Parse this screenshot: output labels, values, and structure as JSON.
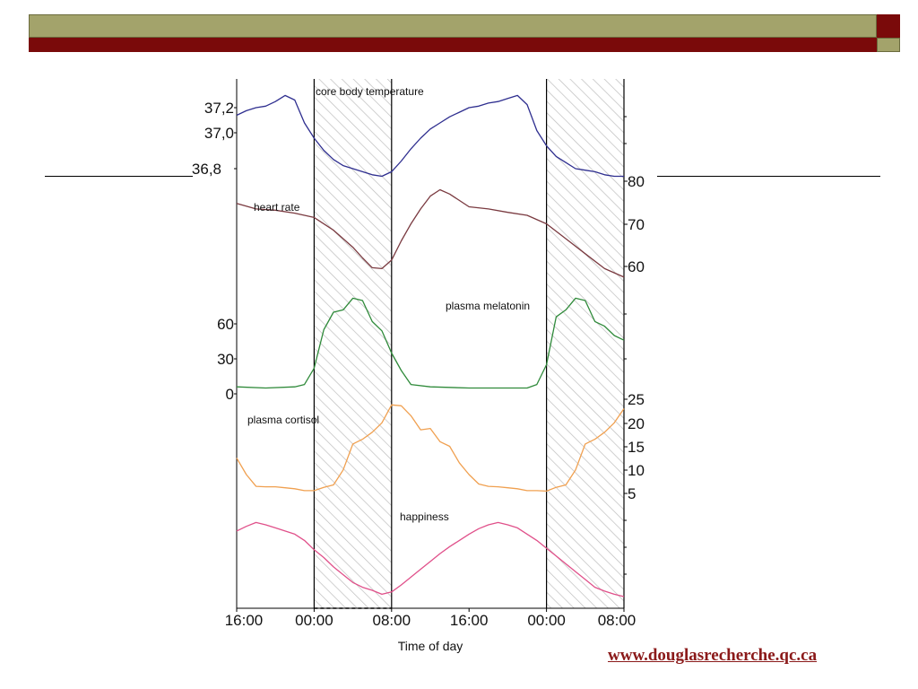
{
  "colors": {
    "banner_olive": "#a3a36b",
    "banner_red": "#7a0a0a",
    "link": "#8b1a1a"
  },
  "source_url": "www.douglasrecherche.qc.ca",
  "chart_data": {
    "type": "line",
    "xlabel": "Time of day",
    "x_ticks": [
      "16:00",
      "00:00",
      "08:00",
      "16:00",
      "00:00",
      "08:00"
    ],
    "x_range_hours": [
      0,
      40
    ],
    "night_shading": [
      [
        8,
        16
      ],
      [
        32,
        40
      ]
    ],
    "series": [
      {
        "name": "core body temperature",
        "color": "#2e2e8f",
        "axis": "left",
        "unit_ticks": [
          "37,2",
          "37,0",
          "36,8"
        ],
        "x": [
          0,
          1,
          2,
          3,
          4,
          5,
          6,
          7,
          8,
          9,
          10,
          11,
          12,
          13,
          14,
          15,
          16,
          17,
          18,
          19,
          20,
          21,
          22,
          23,
          24,
          25,
          26,
          27,
          28,
          29,
          30,
          31,
          32,
          33,
          34,
          35,
          36,
          37,
          38,
          39,
          40
        ],
        "values": [
          37.15,
          37.18,
          37.2,
          37.21,
          37.24,
          37.28,
          37.25,
          37.1,
          37.0,
          36.92,
          36.86,
          36.82,
          36.8,
          36.78,
          36.76,
          36.75,
          36.78,
          36.85,
          36.93,
          37.0,
          37.06,
          37.1,
          37.14,
          37.17,
          37.2,
          37.21,
          37.23,
          37.24,
          37.26,
          37.28,
          37.22,
          37.05,
          36.95,
          36.88,
          36.84,
          36.8,
          36.79,
          36.78,
          36.76,
          36.75,
          36.75
        ]
      },
      {
        "name": "heart rate",
        "color": "#7a3a40",
        "axis": "right",
        "unit_ticks": [
          "80",
          "70",
          "60"
        ],
        "x": [
          0,
          2,
          4,
          6,
          8,
          10,
          12,
          13,
          14,
          15,
          16,
          17,
          18,
          19,
          20,
          21,
          22,
          24,
          26,
          28,
          30,
          32,
          34,
          36,
          38,
          40
        ],
        "values": [
          74.8,
          73.5,
          73.2,
          72.5,
          71.5,
          68.5,
          64.5,
          62.0,
          59.7,
          59.5,
          61.5,
          66.0,
          70.0,
          73.5,
          76.5,
          78.0,
          77.0,
          74.0,
          73.5,
          72.7,
          72.0,
          70.0,
          66.5,
          63.0,
          59.5,
          57.5
        ]
      },
      {
        "name": "plasma melatonin",
        "color": "#2f8a3a",
        "axis": "left",
        "unit_ticks": [
          "60",
          "30",
          "0"
        ],
        "x": [
          0,
          3,
          6,
          7,
          8,
          9,
          10,
          11,
          12,
          13,
          14,
          15,
          16,
          17,
          18,
          20,
          24,
          30,
          31,
          32,
          33,
          34,
          35,
          36,
          37,
          38,
          39,
          40
        ],
        "values": [
          6,
          5,
          6,
          8,
          22,
          55,
          70,
          72,
          82,
          80,
          62,
          54,
          35,
          20,
          8,
          6,
          5,
          5,
          8,
          25,
          66,
          72,
          82,
          80,
          62,
          58,
          50,
          46
        ]
      },
      {
        "name": "plasma cortisol",
        "color": "#f0a050",
        "axis": "right",
        "unit_ticks": [
          "25",
          "20",
          "15",
          "10",
          "5"
        ],
        "x": [
          0,
          1,
          2,
          3,
          4,
          5,
          6,
          7,
          8,
          9,
          10,
          11,
          12,
          13,
          14,
          15,
          16,
          17,
          18,
          19,
          20,
          21,
          22,
          23,
          24,
          25,
          26,
          27,
          28,
          29,
          30,
          31,
          32,
          33,
          34,
          35,
          36,
          37,
          38,
          39,
          40
        ],
        "values": [
          12.5,
          9.0,
          6.5,
          6.4,
          6.4,
          6.2,
          6.0,
          5.6,
          5.6,
          6.3,
          6.8,
          10.0,
          15.5,
          16.5,
          18.0,
          20.0,
          23.8,
          23.6,
          21.5,
          18.5,
          18.8,
          16.0,
          15.0,
          11.5,
          9.0,
          7.0,
          6.5,
          6.4,
          6.2,
          6.0,
          5.6,
          5.6,
          5.5,
          6.3,
          6.8,
          10.0,
          15.5,
          16.5,
          18.0,
          20.0,
          23.0
        ]
      },
      {
        "name": "happiness",
        "color": "#e0508a",
        "axis": "none",
        "x": [
          0,
          1,
          2,
          3,
          4,
          5,
          6,
          7,
          8,
          9,
          10,
          11,
          12,
          13,
          14,
          15,
          16,
          17,
          18,
          19,
          20,
          21,
          22,
          23,
          24,
          25,
          26,
          27,
          28,
          29,
          30,
          31,
          32,
          33,
          34,
          35,
          36,
          37,
          38,
          39,
          40
        ],
        "values": [
          0.84,
          0.9,
          0.95,
          0.92,
          0.88,
          0.84,
          0.8,
          0.72,
          0.6,
          0.5,
          0.38,
          0.28,
          0.18,
          0.12,
          0.08,
          0.03,
          0.06,
          0.15,
          0.25,
          0.35,
          0.45,
          0.55,
          0.64,
          0.72,
          0.8,
          0.87,
          0.92,
          0.95,
          0.92,
          0.88,
          0.8,
          0.72,
          0.62,
          0.52,
          0.42,
          0.32,
          0.22,
          0.12,
          0.07,
          0.03,
          0.0
        ]
      }
    ]
  }
}
